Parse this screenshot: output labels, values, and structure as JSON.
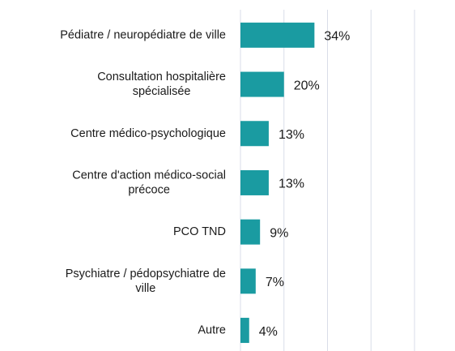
{
  "chart_data": {
    "type": "bar",
    "orientation": "horizontal",
    "categories": [
      "Pédiatre / neuropédiatre de ville",
      "Consultation hospitalière\nspécialisée",
      "Centre médico-psychologique",
      "Centre d'action médico-social\nprécoce",
      "PCO TND",
      "Psychiatre / pédopsychiatre de\nville",
      "Autre"
    ],
    "values": [
      34,
      20,
      13,
      13,
      9,
      7,
      4
    ],
    "value_labels": [
      "34%",
      "20%",
      "13%",
      "13%",
      "9%",
      "7%",
      "4%"
    ],
    "color": "#1a9ba1",
    "xlim": [
      0,
      80
    ],
    "xticks": [
      0,
      20,
      40,
      60,
      80
    ],
    "grid": true
  }
}
